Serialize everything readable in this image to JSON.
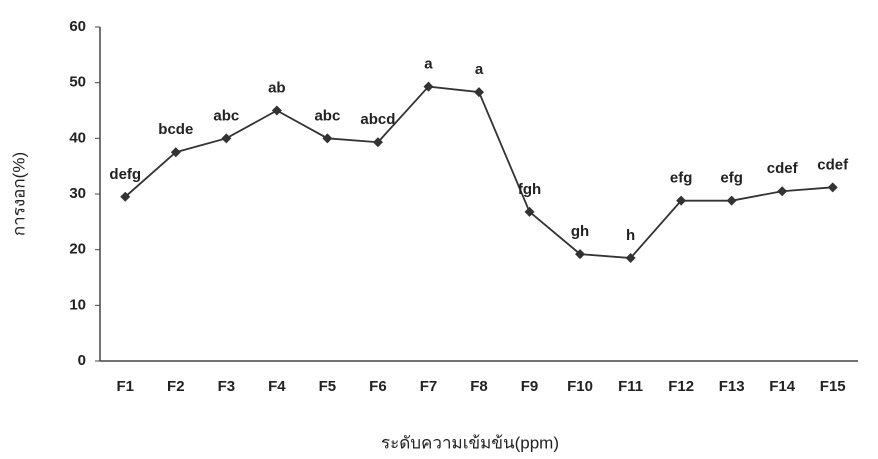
{
  "chart_data": {
    "type": "line",
    "y_label": "การงอก(%)",
    "x_label": "ระดับความเข้มข้น(ppm)",
    "categories": [
      "F1",
      "F2",
      "F3",
      "F4",
      "F5",
      "F6",
      "F7",
      "F8",
      "F9",
      "F10",
      "F11",
      "F12",
      "F13",
      "F14",
      "F15"
    ],
    "values": [
      29.5,
      37.5,
      40,
      45,
      40,
      39.3,
      49.3,
      48.3,
      26.8,
      19.2,
      18.5,
      28.8,
      28.8,
      30.5,
      31.2
    ],
    "annotations": [
      "defg",
      "bcde",
      "abc",
      "ab",
      "abc",
      "abcd",
      "a",
      "a",
      "fgh",
      "gh",
      "h",
      "efg",
      "efg",
      "cdef",
      "cdef"
    ],
    "color": "#333333",
    "ylim": [
      0,
      60
    ],
    "yticks": [
      0,
      10,
      20,
      30,
      40,
      50,
      60
    ],
    "grid": false
  }
}
